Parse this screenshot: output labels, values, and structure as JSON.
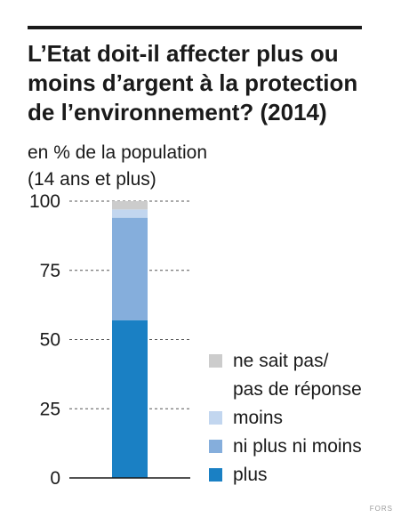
{
  "title_lines": [
    "L’Etat doit-il affecter plus ou",
    "moins d’argent à la protection",
    "de l’environnement? (2014)"
  ],
  "subtitle_lines": [
    "en % de la population",
    "(14 ans et plus)"
  ],
  "source_mark": "FORS",
  "chart_data": {
    "type": "bar",
    "stacked": true,
    "categories": [
      ""
    ],
    "ylim": [
      0,
      100
    ],
    "yticks": [
      0,
      25,
      50,
      75,
      100
    ],
    "grid": "dashed",
    "legend_position": "right",
    "series": [
      {
        "name": "plus",
        "values": [
          57
        ],
        "color": "#1a80c4"
      },
      {
        "name": "ni plus ni moins",
        "values": [
          37
        ],
        "color": "#85aedc"
      },
      {
        "name": "moins",
        "values": [
          3
        ],
        "color": "#c2d6ef"
      },
      {
        "name": "ne sait pas/ pas de réponse",
        "values": [
          3
        ],
        "color": "#cccccc"
      }
    ],
    "legend_entries": [
      {
        "lines": [
          "ne sait pas/",
          "pas de réponse"
        ],
        "color": "#cccccc"
      },
      {
        "lines": [
          "moins"
        ],
        "color": "#c2d6ef"
      },
      {
        "lines": [
          "ni plus ni moins"
        ],
        "color": "#85aedc"
      },
      {
        "lines": [
          "plus"
        ],
        "color": "#1a80c4"
      }
    ]
  }
}
